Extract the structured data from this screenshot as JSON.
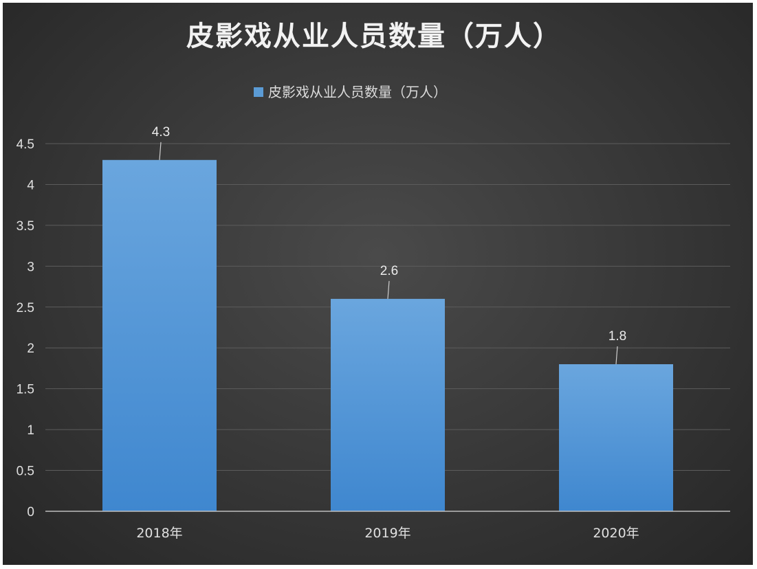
{
  "chart_data": {
    "type": "bar",
    "title": "皮影戏从业人员数量（万人）",
    "categories": [
      "2018年",
      "2019年",
      "2020年"
    ],
    "series": [
      {
        "name": "皮影戏从业人员数量（万人）",
        "values": [
          4.3,
          2.6,
          1.8
        ],
        "data_labels": [
          "4.3",
          "2.6",
          "1.8"
        ]
      }
    ],
    "ylim": [
      0,
      4.5
    ],
    "yticks": [
      0,
      0.5,
      1,
      1.5,
      2,
      2.5,
      3,
      3.5,
      4,
      4.5
    ],
    "ytick_labels": [
      "0",
      "0.5",
      "1",
      "1.5",
      "2",
      "2.5",
      "3",
      "3.5",
      "4",
      "4.5"
    ],
    "xlabel": "",
    "ylabel": "",
    "grid": true,
    "legend_position": "top",
    "colors": {
      "bar_top": "#6aa6de",
      "bar_bottom": "#3f87cf",
      "background": "#3a3a3a",
      "legend_swatch": "#5b9bd5"
    }
  }
}
